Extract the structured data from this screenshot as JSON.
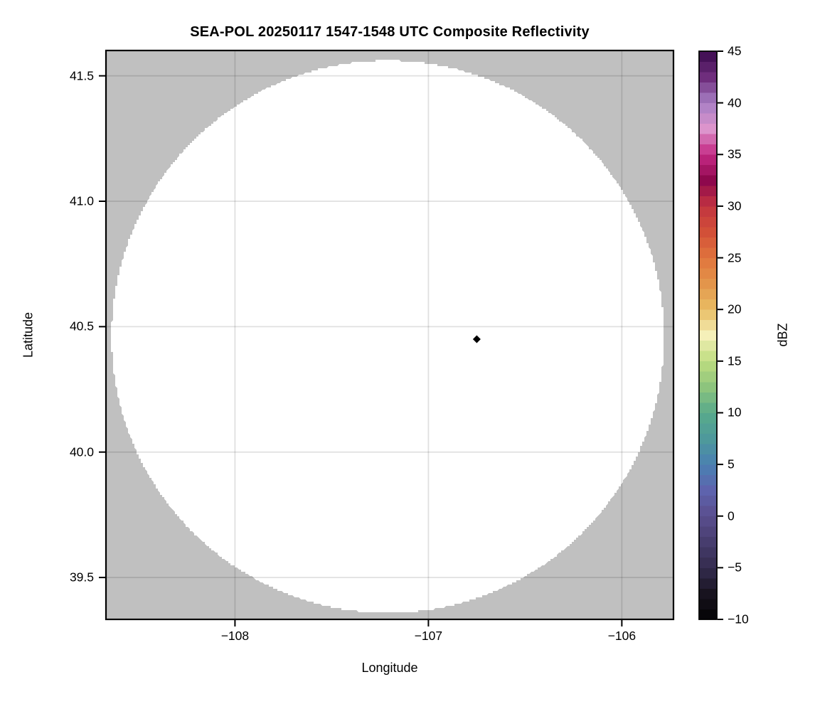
{
  "chart_data": {
    "type": "heatmap",
    "title": "SEA-POL 20250117 1547-1548 UTC Composite Reflectivity",
    "xlabel": "Longitude",
    "ylabel": "Latitude",
    "xlim": [
      -108.667,
      -105.733
    ],
    "ylim": [
      39.333,
      41.601
    ],
    "xticks": [
      {
        "value": -108,
        "label": "−108"
      },
      {
        "value": -107,
        "label": "−107"
      },
      {
        "value": -106,
        "label": "−106"
      }
    ],
    "yticks": [
      {
        "value": 41.5,
        "label": "41.5"
      },
      {
        "value": 41.0,
        "label": "41.0"
      },
      {
        "value": 40.5,
        "label": "40.5"
      },
      {
        "value": 40.0,
        "label": "40.0"
      },
      {
        "value": 39.5,
        "label": "39.5"
      }
    ],
    "grid": true,
    "grid_color": "rgba(0,0,0,0.12)",
    "masked_region_color": "#c0c0c0",
    "data_region_color": "#ffffff",
    "coverage_circle": {
      "center_lon": -107.21,
      "center_lat": 40.46,
      "radius_lon_deg": 1.428,
      "radius_lat_deg": 1.101
    },
    "site_marker": {
      "lon": -106.75,
      "lat": 40.45,
      "shape": "diamond",
      "color": "#000000"
    },
    "colorbar": {
      "label": "dBZ",
      "vmin": -10,
      "vmax": 45,
      "segment_dbz": 1,
      "ticks": [
        {
          "value": 45,
          "label": "45"
        },
        {
          "value": 40,
          "label": "40"
        },
        {
          "value": 35,
          "label": "35"
        },
        {
          "value": 30,
          "label": "30"
        },
        {
          "value": 25,
          "label": "25"
        },
        {
          "value": 20,
          "label": "20"
        },
        {
          "value": 15,
          "label": "15"
        },
        {
          "value": 10,
          "label": "10"
        },
        {
          "value": 5,
          "label": "5"
        },
        {
          "value": 0,
          "label": "0"
        },
        {
          "value": -5,
          "label": "−5"
        },
        {
          "value": -10,
          "label": "−10"
        }
      ],
      "color_stops": [
        [
          -10,
          "#030303"
        ],
        [
          -7.5,
          "#18131f"
        ],
        [
          -5,
          "#342c4e"
        ],
        [
          -2.5,
          "#473d6e"
        ],
        [
          0,
          "#5a4e8e"
        ],
        [
          2.5,
          "#5e63ad"
        ],
        [
          5,
          "#4a80b2"
        ],
        [
          7.5,
          "#4e999b"
        ],
        [
          10,
          "#58aa8b"
        ],
        [
          12.5,
          "#8dc47d"
        ],
        [
          15,
          "#bedd7f"
        ],
        [
          17.5,
          "#f5f0b9"
        ],
        [
          20,
          "#e9bd63"
        ],
        [
          22.5,
          "#e3954b"
        ],
        [
          25,
          "#e0743d"
        ],
        [
          27.5,
          "#d25038"
        ],
        [
          30,
          "#c23440"
        ],
        [
          32.5,
          "#8e084d"
        ],
        [
          35,
          "#c42884"
        ],
        [
          37.5,
          "#dc94cc"
        ],
        [
          40,
          "#a77fc4"
        ],
        [
          42.5,
          "#6f2e7d"
        ],
        [
          45,
          "#3a0a4d"
        ]
      ]
    }
  }
}
